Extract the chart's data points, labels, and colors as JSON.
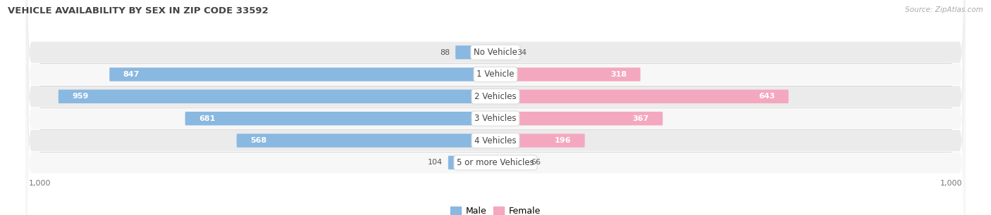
{
  "title": "VEHICLE AVAILABILITY BY SEX IN ZIP CODE 33592",
  "source": "Source: ZipAtlas.com",
  "categories": [
    "No Vehicle",
    "1 Vehicle",
    "2 Vehicles",
    "3 Vehicles",
    "4 Vehicles",
    "5 or more Vehicles"
  ],
  "male_values": [
    88,
    847,
    959,
    681,
    568,
    104
  ],
  "female_values": [
    34,
    318,
    643,
    367,
    196,
    66
  ],
  "male_color": "#89b8e0",
  "female_color": "#f4a8c0",
  "male_color_dark": "#6a9ccc",
  "female_color_dark": "#e8829f",
  "bar_height": 0.62,
  "xlim": 1000,
  "row_bg_colors": [
    "#ebebeb",
    "#f7f7f7"
  ],
  "legend_male_label": "Male",
  "legend_female_label": "Female",
  "x_tick_labels": [
    "1,000",
    "1,000"
  ],
  "figsize": [
    14.06,
    3.06
  ],
  "dpi": 100,
  "label_threshold": 150
}
